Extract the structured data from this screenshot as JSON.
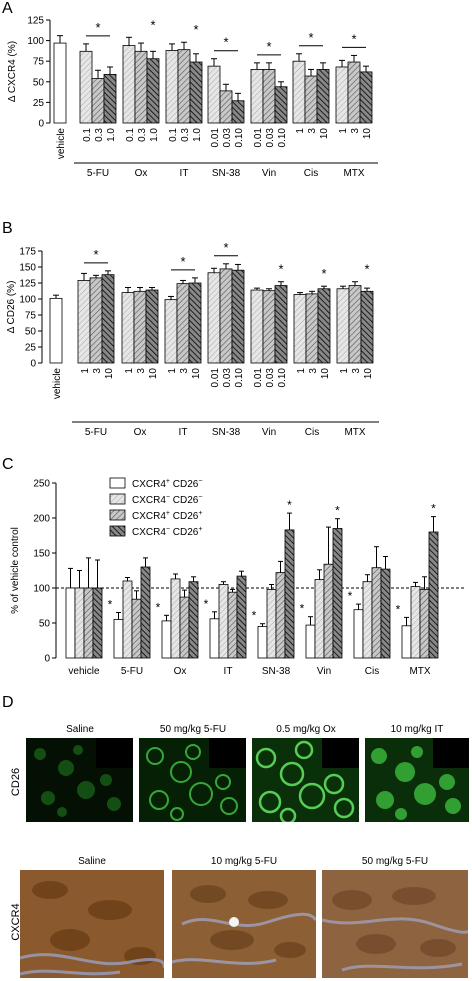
{
  "panel_labels": [
    "A",
    "B",
    "C",
    "D"
  ],
  "colors": {
    "green_channel": "#1f9a1f",
    "ihc_brown": "#8a5a2e",
    "ihc_blue": "#8f93b8"
  },
  "chart_data": [
    {
      "type": "bar",
      "panel": "A",
      "ylabel": "Δ CXCR4 (%)",
      "ylim": [
        0,
        125
      ],
      "yticks": [
        "0",
        "25",
        "50",
        "75",
        "100",
        "125"
      ],
      "groups": [
        {
          "name": "vehicle",
          "doses": [
            "vehicle"
          ],
          "values": [
            97
          ],
          "errors": [
            9
          ],
          "sig_line": false,
          "sig_star": false
        },
        {
          "name": "5-FU",
          "doses": [
            "0.1",
            "0.3",
            "1.0"
          ],
          "values": [
            87,
            54,
            59
          ],
          "errors": [
            9,
            10,
            9
          ],
          "sig_line": true,
          "sig_star": true
        },
        {
          "name": "Ox",
          "doses": [
            "0.1",
            "0.3",
            "1.0"
          ],
          "values": [
            94,
            87,
            78
          ],
          "errors": [
            10,
            10,
            9
          ],
          "sig_line": false,
          "sig_star": true
        },
        {
          "name": "IT",
          "doses": [
            "0.1",
            "0.3",
            "1.0"
          ],
          "values": [
            88,
            89,
            74
          ],
          "errors": [
            8,
            9,
            10
          ],
          "sig_line": false,
          "sig_star": true
        },
        {
          "name": "SN-38",
          "doses": [
            "0.01",
            "0.03",
            "0.10"
          ],
          "values": [
            69,
            39,
            27
          ],
          "errors": [
            9,
            8,
            9
          ],
          "sig_line": true,
          "sig_star": true
        },
        {
          "name": "Vin",
          "doses": [
            "0.01",
            "0.03",
            "0.10"
          ],
          "values": [
            65,
            65,
            44
          ],
          "errors": [
            8,
            8,
            6
          ],
          "sig_line": true,
          "sig_star": true
        },
        {
          "name": "Cis",
          "doses": [
            "1",
            "3",
            "10"
          ],
          "values": [
            75,
            57,
            65
          ],
          "errors": [
            9,
            8,
            8
          ],
          "sig_line": true,
          "sig_star": true
        },
        {
          "name": "MTX",
          "doses": [
            "1",
            "3",
            "10"
          ],
          "values": [
            68,
            74,
            62
          ],
          "errors": [
            8,
            8,
            7
          ],
          "sig_line": true,
          "sig_star": true
        }
      ]
    },
    {
      "type": "bar",
      "panel": "B",
      "ylabel": "Δ CD26 (%)",
      "ylim": [
        0,
        175
      ],
      "yticks": [
        "0",
        "25",
        "50",
        "75",
        "100",
        "125",
        "150",
        "175"
      ],
      "groups": [
        {
          "name": "vehicle",
          "doses": [
            "vehicle"
          ],
          "values": [
            101
          ],
          "errors": [
            5
          ],
          "sig_line": false,
          "sig_star": false
        },
        {
          "name": "5-FU",
          "doses": [
            "1",
            "3",
            "10"
          ],
          "values": [
            129,
            133,
            138
          ],
          "errors": [
            11,
            4,
            6
          ],
          "sig_line": true,
          "sig_star": true
        },
        {
          "name": "Ox",
          "doses": [
            "1",
            "3",
            "10"
          ],
          "values": [
            110,
            112,
            114
          ],
          "errors": [
            8,
            6,
            4
          ],
          "sig_line": false,
          "sig_star": false
        },
        {
          "name": "IT",
          "doses": [
            "1",
            "3",
            "10"
          ],
          "values": [
            99,
            124,
            125
          ],
          "errors": [
            5,
            5,
            8
          ],
          "sig_line": true,
          "sig_star": true
        },
        {
          "name": "SN-38",
          "doses": [
            "0.01",
            "0.03",
            "0.10"
          ],
          "values": [
            141,
            147,
            145
          ],
          "errors": [
            7,
            8,
            9
          ],
          "sig_line": true,
          "sig_star": true
        },
        {
          "name": "Vin",
          "doses": [
            "0.01",
            "0.03",
            "0.10"
          ],
          "values": [
            114,
            113,
            121
          ],
          "errors": [
            3,
            3,
            6
          ],
          "sig_line": false,
          "sig_star": true
        },
        {
          "name": "Cis",
          "doses": [
            "1",
            "3",
            "10"
          ],
          "values": [
            107,
            108,
            116
          ],
          "errors": [
            3,
            4,
            4
          ],
          "sig_line": false,
          "sig_star": true
        },
        {
          "name": "MTX",
          "doses": [
            "1",
            "3",
            "10"
          ],
          "values": [
            116,
            121,
            112
          ],
          "errors": [
            4,
            6,
            5
          ],
          "sig_line": false,
          "sig_star": true
        }
      ]
    },
    {
      "type": "bar",
      "panel": "C",
      "ylabel": "% of vehicle control",
      "ylim": [
        0,
        250
      ],
      "yticks": [
        "0",
        "50",
        "100",
        "150",
        "200",
        "250"
      ],
      "reference_line": 100,
      "legend_position": "top-left",
      "series": [
        {
          "name_main": "CXCR4",
          "sup1": "+",
          "name_rest": " CD26",
          "sup2": "−"
        },
        {
          "name_main": "CXCR4",
          "sup1": "−",
          "name_rest": " CD26",
          "sup2": "−"
        },
        {
          "name_main": "CXCR4",
          "sup1": "+",
          "name_rest": " CD26",
          "sup2": "+"
        },
        {
          "name_main": "CXCR4",
          "sup1": "−",
          "name_rest": " CD26",
          "sup2": "+"
        }
      ],
      "categories": [
        "vehicle",
        "5-FU",
        "Ox",
        "IT",
        "SN-38",
        "Vin",
        "Cis",
        "MTX"
      ],
      "values": [
        [
          100,
          100,
          100,
          100
        ],
        [
          55,
          110,
          84,
          130
        ],
        [
          53,
          113,
          87,
          109
        ],
        [
          56,
          105,
          94,
          117
        ],
        [
          45,
          98,
          122,
          183
        ],
        [
          47,
          112,
          134,
          185
        ],
        [
          69,
          109,
          129,
          127
        ],
        [
          46,
          102,
          98,
          180
        ]
      ],
      "errors": [
        [
          28,
          25,
          43,
          40
        ],
        [
          10,
          5,
          12,
          13
        ],
        [
          8,
          7,
          10,
          7
        ],
        [
          10,
          4,
          4,
          7
        ],
        [
          4,
          7,
          16,
          24
        ],
        [
          12,
          14,
          53,
          14
        ],
        [
          8,
          10,
          30,
          18
        ],
        [
          12,
          6,
          18,
          22
        ]
      ],
      "stars": [
        [
          false,
          false,
          false,
          false
        ],
        [
          true,
          false,
          false,
          false
        ],
        [
          true,
          false,
          false,
          false
        ],
        [
          true,
          false,
          false,
          false
        ],
        [
          true,
          false,
          false,
          true
        ],
        [
          true,
          false,
          false,
          true
        ],
        [
          true,
          false,
          false,
          false
        ],
        [
          true,
          false,
          false,
          true
        ]
      ]
    }
  ],
  "panel_d": {
    "cd26_row_label": "CD26",
    "cd26_titles": [
      "Saline",
      "50 mg/kg 5-FU",
      "0.5 mg/kg Ox",
      "10 mg/kg IT"
    ],
    "cxcr4_row_label": "CXCR4",
    "cxcr4_titles": [
      "Saline",
      "10 mg/kg 5-FU",
      "50 mg/kg 5-FU"
    ]
  }
}
